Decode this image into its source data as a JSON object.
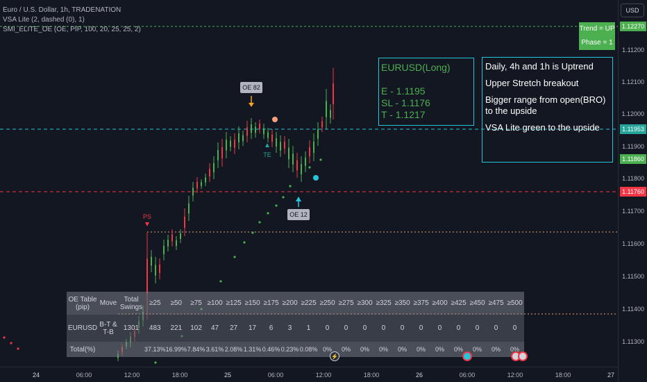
{
  "legend": {
    "line1": "Euro / U.S. Dollar, 1h, TRADENATION",
    "line2": "VSA Lite (2, dashed (0), 1)",
    "line3": "SMI_ELITE_OE (OE, PIP, 100, 20, 25, 25, 2)"
  },
  "price_axis": {
    "currency_button": "USD",
    "labels": [
      "1.12100",
      "1.12000",
      "1.11900",
      "1.11800",
      "1.11700",
      "1.11600",
      "1.11500",
      "1.11400",
      "1.11300",
      "1.11200"
    ],
    "tags": [
      {
        "text": "1.12270",
        "color": "#4caf50"
      },
      {
        "text": "1.11953",
        "color": "#26a69a"
      },
      {
        "text": "1.11860",
        "color": "#4caf50"
      },
      {
        "text": "1.11760",
        "color": "#f23645"
      }
    ]
  },
  "time_axis": {
    "labels": [
      "24",
      "06:00",
      "12:00",
      "18:00",
      "25",
      "06:00",
      "12:00",
      "18:00",
      "26",
      "06:00",
      "12:00",
      "18:00",
      "27"
    ]
  },
  "trend_box": {
    "trend": "Trend = UP",
    "phase": "Phase = 1"
  },
  "setup_box": {
    "title": "EURUSD(Long)",
    "entry": "E - 1.1195",
    "stop": "SL - 1.1176",
    "target": "T - 1.1217"
  },
  "notes": [
    "Daily, 4h and 1h is Uptrend",
    "Upper Stretch breakout",
    "Bigger range from open(BRO) to the upside",
    "VSA Lite green to the upside"
  ],
  "markers": {
    "oe_top": "OE 82",
    "oe_bottom": "OE 12",
    "ps": "PS",
    "te": "TE"
  },
  "oe_table": {
    "header": [
      "OE Table (pip)",
      "Move",
      "Total Swings",
      "≥25",
      "≥50",
      "≥75",
      "≥100",
      "≥125",
      "≥150",
      "≥175",
      "≥200",
      "≥225",
      "≥250",
      "≥275",
      "≥300",
      "≥325",
      "≥350",
      "≥375",
      "≥400",
      "≥425",
      "≥450",
      "≥475",
      "≥500"
    ],
    "row": [
      "EURUSD",
      "B-T & T-B",
      "1301",
      "483",
      "221",
      "102",
      "47",
      "27",
      "17",
      "6",
      "3",
      "1",
      "0",
      "0",
      "0",
      "0",
      "0",
      "0",
      "0",
      "0",
      "0",
      "0",
      "0"
    ],
    "pct": [
      "Total(%)",
      "",
      "",
      "37.13%",
      "16.99%",
      "7.84%",
      "3.61%",
      "2.08%",
      "1.31%",
      "0.46%",
      "0.23%",
      "0.08%",
      "0%",
      "0%",
      "0%",
      "0%",
      "0%",
      "0%",
      "0%",
      "0%",
      "0%",
      "0%",
      "0%"
    ]
  },
  "colors": {
    "background": "#131722",
    "up": "#4caf50",
    "down": "#f23645",
    "cyan": "#26c6da"
  }
}
